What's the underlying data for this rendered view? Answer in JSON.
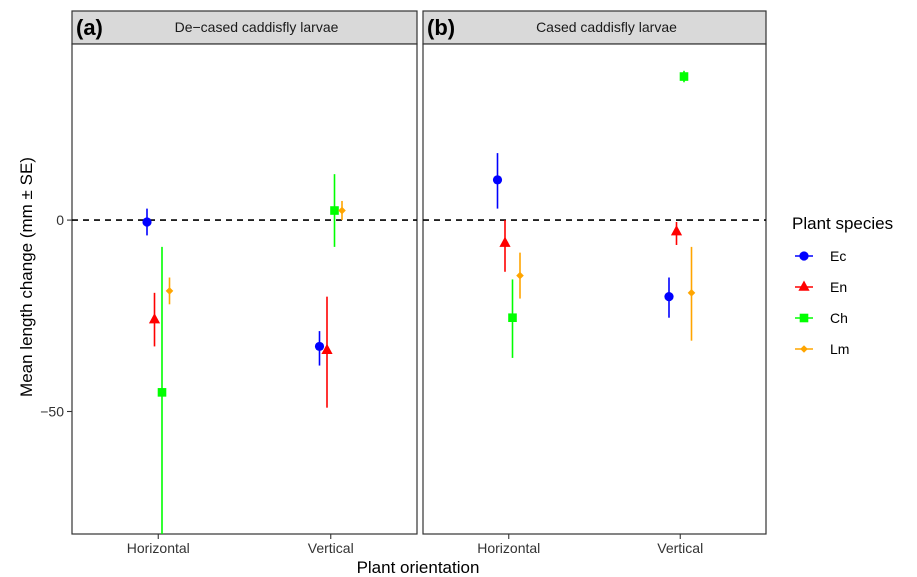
{
  "chart_data": {
    "type": "scatter",
    "ylabel": "Mean length change (mm ± SE)",
    "xlabel": "Plant orientation",
    "categories": [
      "Horizontal",
      "Vertical"
    ],
    "yticks": [
      0,
      -50
    ],
    "ylim": [
      -82,
      46
    ],
    "reference_line_y": 0,
    "grid": false,
    "legend": {
      "title": "Plant species",
      "position": "right",
      "entries": [
        {
          "name": "Ec",
          "color": "#0000ff",
          "shape": "circle"
        },
        {
          "name": "En",
          "color": "#ff0000",
          "shape": "triangle"
        },
        {
          "name": "Ch",
          "color": "#00ff00",
          "shape": "square"
        },
        {
          "name": "Lm",
          "color": "#ffa500",
          "shape": "diamond"
        }
      ]
    },
    "panels": [
      {
        "tag": "(a)",
        "title": "De−cased caddisfly larvae",
        "series": [
          {
            "name": "Ec",
            "points": [
              {
                "x": "Horizontal",
                "y": -0.5,
                "lower": -4,
                "upper": 3
              },
              {
                "x": "Vertical",
                "y": -33,
                "lower": -38,
                "upper": -29
              }
            ]
          },
          {
            "name": "En",
            "points": [
              {
                "x": "Horizontal",
                "y": -26,
                "lower": -33,
                "upper": -19
              },
              {
                "x": "Vertical",
                "y": -34,
                "lower": -49,
                "upper": -20
              }
            ]
          },
          {
            "name": "Ch",
            "points": [
              {
                "x": "Horizontal",
                "y": -45,
                "lower": -82,
                "upper": -7
              },
              {
                "x": "Vertical",
                "y": 2.5,
                "lower": -7,
                "upper": 12
              }
            ]
          },
          {
            "name": "Lm",
            "points": [
              {
                "x": "Horizontal",
                "y": -18.5,
                "lower": -22,
                "upper": -15
              },
              {
                "x": "Vertical",
                "y": 2.5,
                "lower": 0,
                "upper": 5
              }
            ]
          }
        ]
      },
      {
        "tag": "(b)",
        "title": "Cased caddisfly larvae",
        "series": [
          {
            "name": "Ec",
            "points": [
              {
                "x": "Horizontal",
                "y": 10.5,
                "lower": 3,
                "upper": 17.5
              },
              {
                "x": "Vertical",
                "y": -20,
                "lower": -25.5,
                "upper": -15
              }
            ]
          },
          {
            "name": "En",
            "points": [
              {
                "x": "Horizontal",
                "y": -6,
                "lower": -13.5,
                "upper": 0
              },
              {
                "x": "Vertical",
                "y": -3,
                "lower": -6.5,
                "upper": -0.5
              }
            ]
          },
          {
            "name": "Ch",
            "points": [
              {
                "x": "Horizontal",
                "y": -25.5,
                "lower": -36,
                "upper": -15.5
              },
              {
                "x": "Vertical",
                "y": 37.5,
                "lower": 36,
                "upper": 39
              }
            ]
          },
          {
            "name": "Lm",
            "points": [
              {
                "x": "Horizontal",
                "y": -14.5,
                "lower": -20.5,
                "upper": -8.5
              },
              {
                "x": "Vertical",
                "y": -19,
                "lower": -31.5,
                "upper": -7
              }
            ]
          }
        ]
      }
    ]
  }
}
